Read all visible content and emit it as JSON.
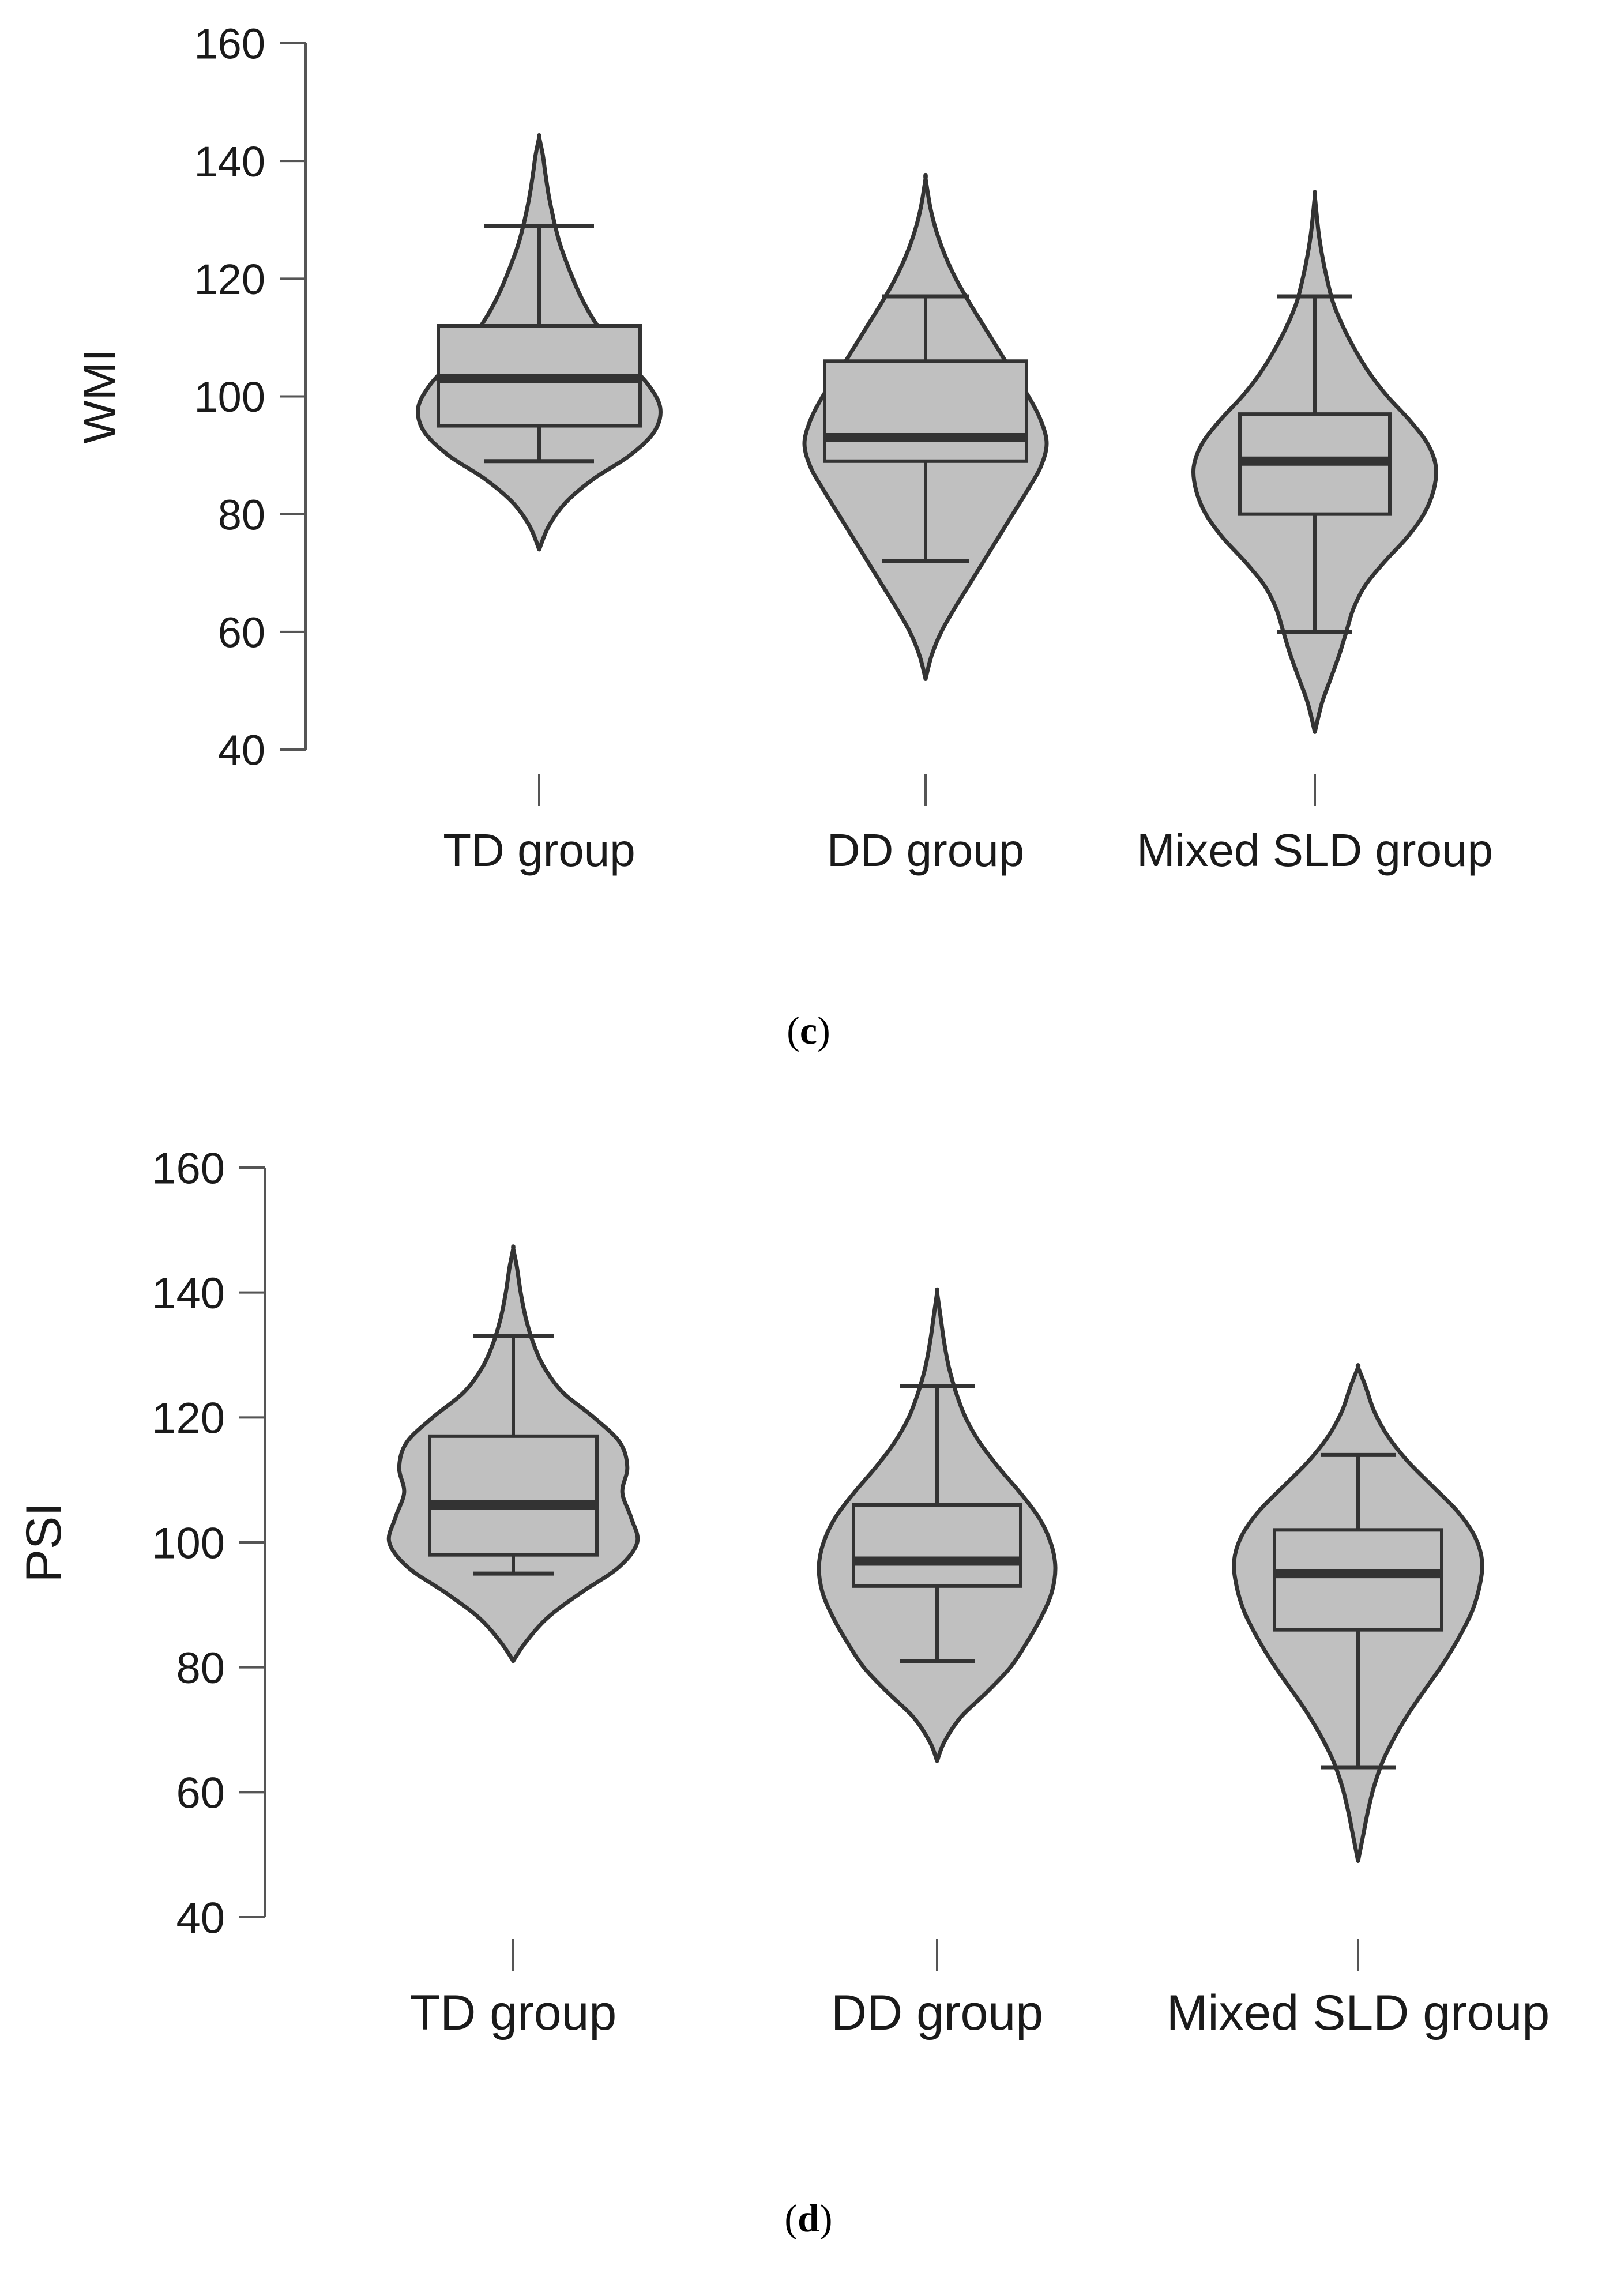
{
  "chart_data": [
    {
      "type": "violin-box",
      "panel": "c",
      "caption": {
        "open": "(",
        "letter": "c",
        "close": ")"
      },
      "ylabel": "WMI",
      "xlabel": "",
      "ylim": [
        40,
        160
      ],
      "yticks": [
        40,
        60,
        80,
        100,
        120,
        140,
        160
      ],
      "categories": [
        "TD group",
        "DD group",
        "Mixed SLD group"
      ],
      "groups": [
        {
          "name": "TD group",
          "whisker_low": 89,
          "q1": 95,
          "median": 103,
          "q3": 112,
          "whisker_high": 129,
          "density": [
            [
              74,
              0
            ],
            [
              78,
              0.08
            ],
            [
              82,
              0.22
            ],
            [
              86,
              0.45
            ],
            [
              90,
              0.75
            ],
            [
              94,
              0.95
            ],
            [
              98,
              1.0
            ],
            [
              102,
              0.9
            ],
            [
              106,
              0.72
            ],
            [
              110,
              0.55
            ],
            [
              114,
              0.42
            ],
            [
              118,
              0.32
            ],
            [
              122,
              0.24
            ],
            [
              126,
              0.17
            ],
            [
              130,
              0.12
            ],
            [
              134,
              0.08
            ],
            [
              138,
              0.05
            ],
            [
              141,
              0.03
            ],
            [
              144,
              0
            ]
          ]
        },
        {
          "name": "DD group",
          "whisker_low": 72,
          "q1": 89,
          "median": 93,
          "q3": 106,
          "whisker_high": 117,
          "density": [
            [
              52,
              0
            ],
            [
              56,
              0.05
            ],
            [
              60,
              0.13
            ],
            [
              64,
              0.24
            ],
            [
              68,
              0.36
            ],
            [
              72,
              0.48
            ],
            [
              76,
              0.6
            ],
            [
              80,
              0.72
            ],
            [
              84,
              0.84
            ],
            [
              88,
              0.95
            ],
            [
              92,
              1.0
            ],
            [
              96,
              0.95
            ],
            [
              100,
              0.85
            ],
            [
              104,
              0.72
            ],
            [
              108,
              0.6
            ],
            [
              112,
              0.48
            ],
            [
              116,
              0.36
            ],
            [
              120,
              0.25
            ],
            [
              124,
              0.16
            ],
            [
              128,
              0.09
            ],
            [
              132,
              0.04
            ],
            [
              137,
              0
            ]
          ]
        },
        {
          "name": "Mixed SLD group",
          "whisker_low": 60,
          "q1": 80,
          "median": 89,
          "q3": 97,
          "whisker_high": 117,
          "density": [
            [
              43,
              0
            ],
            [
              48,
              0.06
            ],
            [
              52,
              0.13
            ],
            [
              56,
              0.2
            ],
            [
              60,
              0.26
            ],
            [
              64,
              0.32
            ],
            [
              68,
              0.42
            ],
            [
              72,
              0.58
            ],
            [
              76,
              0.76
            ],
            [
              80,
              0.9
            ],
            [
              84,
              0.98
            ],
            [
              88,
              1.0
            ],
            [
              92,
              0.93
            ],
            [
              96,
              0.78
            ],
            [
              100,
              0.6
            ],
            [
              104,
              0.45
            ],
            [
              108,
              0.33
            ],
            [
              112,
              0.23
            ],
            [
              116,
              0.15
            ],
            [
              120,
              0.1
            ],
            [
              124,
              0.06
            ],
            [
              128,
              0.03
            ],
            [
              134,
              0
            ]
          ]
        }
      ]
    },
    {
      "type": "violin-box",
      "panel": "d",
      "caption": {
        "open": "(",
        "letter": "d",
        "close": ")"
      },
      "ylabel": "PSI",
      "xlabel": "",
      "ylim": [
        40,
        160
      ],
      "yticks": [
        40,
        60,
        80,
        100,
        120,
        140,
        160
      ],
      "categories": [
        "TD group",
        "DD group",
        "Mixed SLD group"
      ],
      "groups": [
        {
          "name": "TD group",
          "whisker_low": 95,
          "q1": 98,
          "median": 106,
          "q3": 117,
          "whisker_high": 133,
          "density": [
            [
              81,
              0
            ],
            [
              84,
              0.1
            ],
            [
              88,
              0.28
            ],
            [
              92,
              0.55
            ],
            [
              96,
              0.85
            ],
            [
              100,
              1.0
            ],
            [
              104,
              0.95
            ],
            [
              108,
              0.88
            ],
            [
              112,
              0.92
            ],
            [
              116,
              0.86
            ],
            [
              120,
              0.65
            ],
            [
              124,
              0.4
            ],
            [
              128,
              0.25
            ],
            [
              132,
              0.16
            ],
            [
              136,
              0.1
            ],
            [
              140,
              0.06
            ],
            [
              144,
              0.03
            ],
            [
              147,
              0
            ]
          ]
        },
        {
          "name": "DD group",
          "whisker_low": 81,
          "q1": 93,
          "median": 97,
          "q3": 106,
          "whisker_high": 125,
          "density": [
            [
              65,
              0
            ],
            [
              68,
              0.06
            ],
            [
              72,
              0.2
            ],
            [
              76,
              0.42
            ],
            [
              80,
              0.62
            ],
            [
              84,
              0.76
            ],
            [
              88,
              0.88
            ],
            [
              92,
              0.97
            ],
            [
              96,
              1.0
            ],
            [
              100,
              0.96
            ],
            [
              104,
              0.86
            ],
            [
              108,
              0.7
            ],
            [
              112,
              0.52
            ],
            [
              116,
              0.36
            ],
            [
              120,
              0.24
            ],
            [
              124,
              0.16
            ],
            [
              128,
              0.1
            ],
            [
              132,
              0.06
            ],
            [
              136,
              0.03
            ],
            [
              140,
              0
            ]
          ]
        },
        {
          "name": "Mixed SLD group",
          "whisker_low": 64,
          "q1": 86,
          "median": 95,
          "q3": 102,
          "whisker_high": 114,
          "density": [
            [
              49,
              0
            ],
            [
              53,
              0.04
            ],
            [
              57,
              0.08
            ],
            [
              61,
              0.13
            ],
            [
              65,
              0.2
            ],
            [
              69,
              0.3
            ],
            [
              73,
              0.42
            ],
            [
              77,
              0.56
            ],
            [
              81,
              0.7
            ],
            [
              85,
              0.82
            ],
            [
              89,
              0.92
            ],
            [
              93,
              0.98
            ],
            [
              97,
              1.0
            ],
            [
              101,
              0.94
            ],
            [
              105,
              0.8
            ],
            [
              109,
              0.6
            ],
            [
              113,
              0.4
            ],
            [
              117,
              0.24
            ],
            [
              121,
              0.13
            ],
            [
              125,
              0.06
            ],
            [
              128,
              0
            ]
          ]
        }
      ]
    }
  ]
}
